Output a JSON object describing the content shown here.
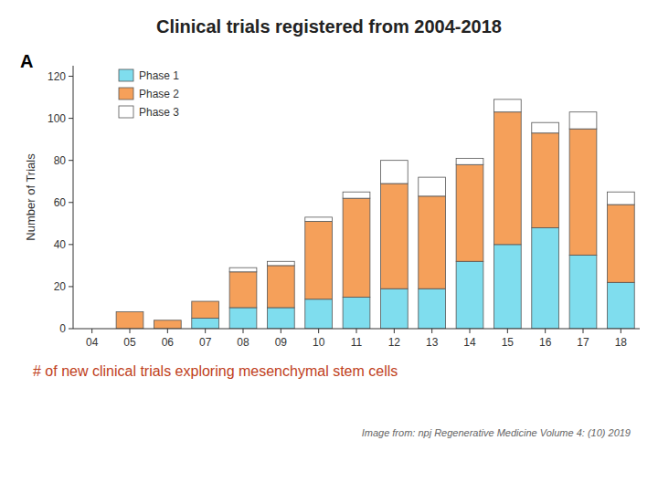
{
  "chart_data": {
    "type": "bar",
    "stacked": true,
    "title": "Clinical trials registered from 2004-2018",
    "subtitle": "# of new clinical trials exploring mesenchymal stem cells",
    "annotations": [
      "Image from: npj Regenerative Medicine Volume 4: (10) 2019",
      "A"
    ],
    "categories": [
      "04",
      "05",
      "06",
      "07",
      "08",
      "09",
      "10",
      "11",
      "12",
      "13",
      "14",
      "15",
      "16",
      "17",
      "18"
    ],
    "series": [
      {
        "name": "Phase 1",
        "color": "#7FDDEE",
        "values": [
          0,
          0,
          0,
          5,
          10,
          10,
          14,
          15,
          19,
          19,
          32,
          40,
          48,
          35,
          22
        ]
      },
      {
        "name": "Phase 2",
        "color": "#F5A05A",
        "values": [
          0,
          8,
          4,
          8,
          17,
          20,
          37,
          47,
          50,
          44,
          46,
          63,
          45,
          60,
          37
        ]
      },
      {
        "name": "Phase 3",
        "color": "#FFFFFF",
        "values": [
          0,
          0,
          0,
          0,
          2,
          2,
          2,
          3,
          11,
          9,
          3,
          6,
          5,
          8,
          6
        ]
      }
    ],
    "ylabel": "Number of Trials",
    "ylim": [
      0,
      125
    ],
    "yticks": [
      0,
      20,
      40,
      60,
      80,
      100,
      120
    ],
    "grid": false,
    "legend": "upper left"
  }
}
